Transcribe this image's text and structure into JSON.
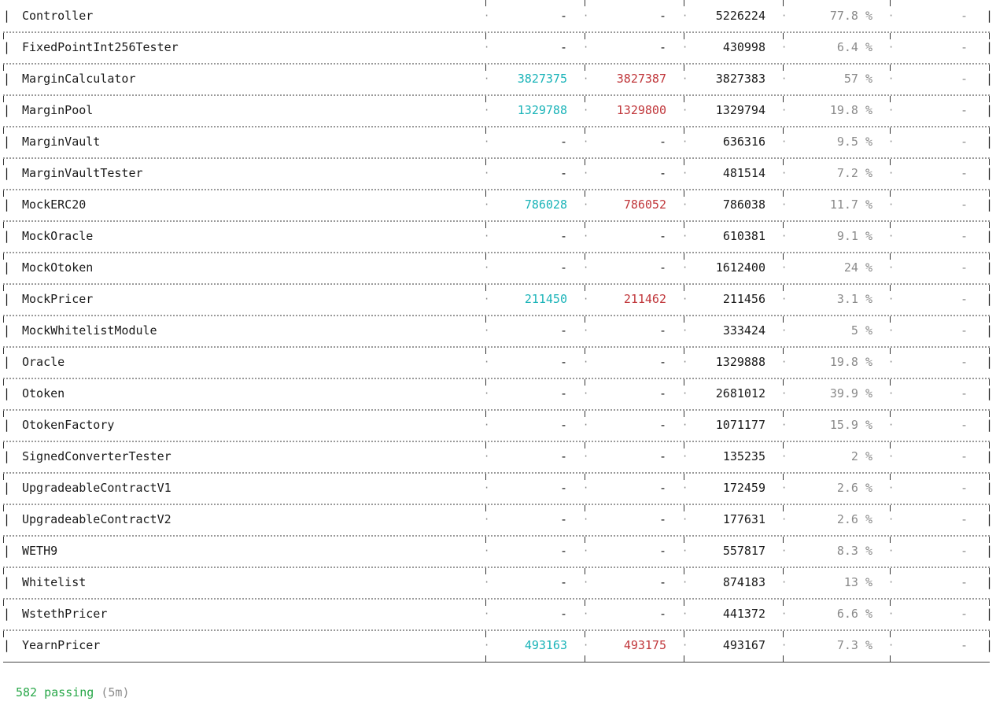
{
  "table": {
    "rows": [
      {
        "name": "Controller",
        "min": "-",
        "max": "-",
        "avg": "5226224",
        "pct": "77.8 %",
        "cost": "-"
      },
      {
        "name": "FixedPointInt256Tester",
        "min": "-",
        "max": "-",
        "avg": "430998",
        "pct": "6.4 %",
        "cost": "-"
      },
      {
        "name": "MarginCalculator",
        "min": "3827375",
        "max": "3827387",
        "avg": "3827383",
        "pct": "57 %",
        "cost": "-"
      },
      {
        "name": "MarginPool",
        "min": "1329788",
        "max": "1329800",
        "avg": "1329794",
        "pct": "19.8 %",
        "cost": "-"
      },
      {
        "name": "MarginVault",
        "min": "-",
        "max": "-",
        "avg": "636316",
        "pct": "9.5 %",
        "cost": "-"
      },
      {
        "name": "MarginVaultTester",
        "min": "-",
        "max": "-",
        "avg": "481514",
        "pct": "7.2 %",
        "cost": "-"
      },
      {
        "name": "MockERC20",
        "min": "786028",
        "max": "786052",
        "avg": "786038",
        "pct": "11.7 %",
        "cost": "-"
      },
      {
        "name": "MockOracle",
        "min": "-",
        "max": "-",
        "avg": "610381",
        "pct": "9.1 %",
        "cost": "-"
      },
      {
        "name": "MockOtoken",
        "min": "-",
        "max": "-",
        "avg": "1612400",
        "pct": "24 %",
        "cost": "-"
      },
      {
        "name": "MockPricer",
        "min": "211450",
        "max": "211462",
        "avg": "211456",
        "pct": "3.1 %",
        "cost": "-"
      },
      {
        "name": "MockWhitelistModule",
        "min": "-",
        "max": "-",
        "avg": "333424",
        "pct": "5 %",
        "cost": "-"
      },
      {
        "name": "Oracle",
        "min": "-",
        "max": "-",
        "avg": "1329888",
        "pct": "19.8 %",
        "cost": "-"
      },
      {
        "name": "Otoken",
        "min": "-",
        "max": "-",
        "avg": "2681012",
        "pct": "39.9 %",
        "cost": "-"
      },
      {
        "name": "OtokenFactory",
        "min": "-",
        "max": "-",
        "avg": "1071177",
        "pct": "15.9 %",
        "cost": "-"
      },
      {
        "name": "SignedConverterTester",
        "min": "-",
        "max": "-",
        "avg": "135235",
        "pct": "2 %",
        "cost": "-"
      },
      {
        "name": "UpgradeableContractV1",
        "min": "-",
        "max": "-",
        "avg": "172459",
        "pct": "2.6 %",
        "cost": "-"
      },
      {
        "name": "UpgradeableContractV2",
        "min": "-",
        "max": "-",
        "avg": "177631",
        "pct": "2.6 %",
        "cost": "-"
      },
      {
        "name": "WETH9",
        "min": "-",
        "max": "-",
        "avg": "557817",
        "pct": "8.3 %",
        "cost": "-"
      },
      {
        "name": "Whitelist",
        "min": "-",
        "max": "-",
        "avg": "874183",
        "pct": "13 %",
        "cost": "-"
      },
      {
        "name": "WstethPricer",
        "min": "-",
        "max": "-",
        "avg": "441372",
        "pct": "6.6 %",
        "cost": "-"
      },
      {
        "name": "YearnPricer",
        "min": "493163",
        "max": "493175",
        "avg": "493167",
        "pct": "7.3 %",
        "cost": "-"
      }
    ]
  },
  "footer": {
    "passing_count": "582 passing",
    "duration": "(5m)"
  },
  "colors": {
    "min_value": "#19b3b8",
    "max_value": "#c0363a",
    "passing": "#2aa84a",
    "muted": "#8a8a8a"
  }
}
